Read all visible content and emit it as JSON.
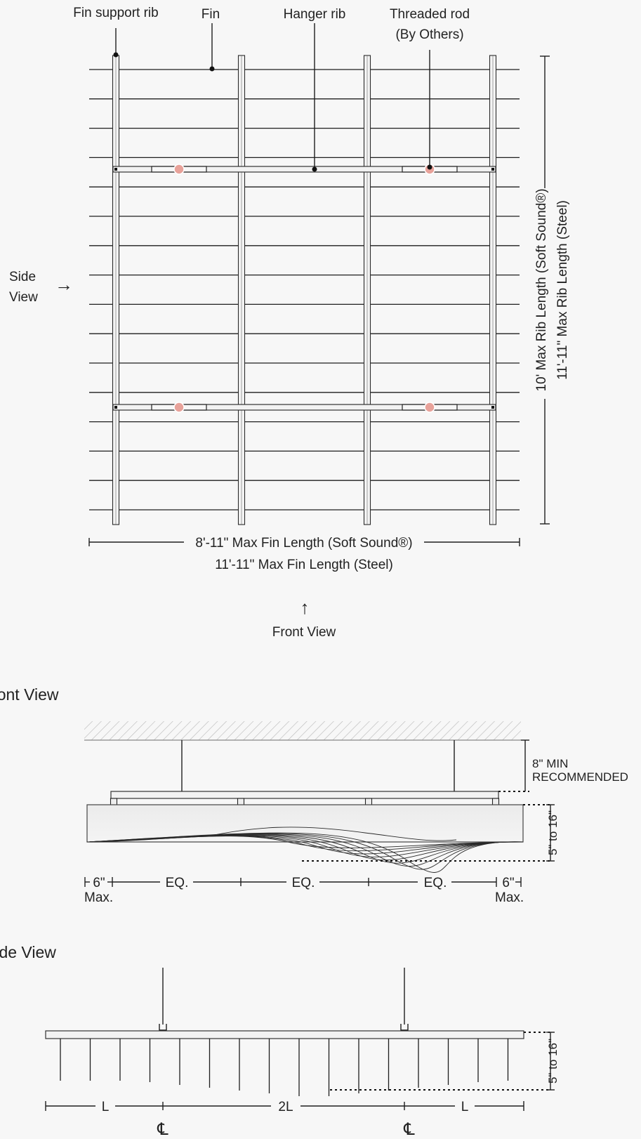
{
  "plan_view": {
    "labels": {
      "fin_support_rib": "Fin support rib",
      "fin": "Fin",
      "hanger_rib": "Hanger rib",
      "threaded_rod_line1": "Threaded rod",
      "threaded_rod_line2": "(By Others)"
    },
    "rib_length_soft_sound": "10' Max Rib Length (Soft Sound®)",
    "rib_length_steel": "11'-11\" Max Rib Length (Steel)",
    "fin_length_soft_sound": "8'-11\" Max Fin Length (Soft Sound®)",
    "fin_length_steel": "11'-11\" Max Fin Length (Steel)",
    "side_view_line1": "Side",
    "side_view_line2": "View",
    "front_view": "Front View",
    "arrow_right": "→",
    "arrow_up": "↑"
  },
  "front_view": {
    "title": "Front View",
    "clearance_line1": "8\" MIN",
    "clearance_line2": "RECOMMENDED",
    "height_range": "5\" to 16\"",
    "left_max_value": "6\"",
    "right_max_value": "6\"",
    "max_label": "Max.",
    "eq_labels": [
      "EQ.",
      "EQ.",
      "EQ."
    ]
  },
  "side_view": {
    "title": "Side View",
    "height_range": "5\" to 16\"",
    "spacing_labels": [
      "L",
      "2L",
      "L"
    ],
    "centerline_symbol": "℄"
  },
  "colors": {
    "background": "#f7f7f7",
    "line": "#1e1e1e",
    "rod_accent": "#e8a29a"
  }
}
